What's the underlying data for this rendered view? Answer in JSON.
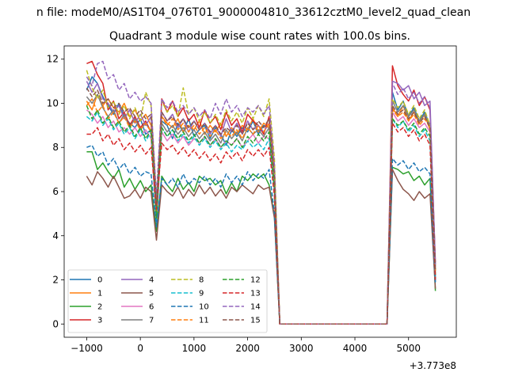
{
  "figure": {
    "suptitle": "n file: modeM0/AS1T04_076T01_9000004810_33612cztM0_level2_quad_clean",
    "title": "Quadrant 3 module wise count rates with 100.0s bins."
  },
  "chart_data": {
    "type": "line",
    "title": "Quadrant 3 module wise count rates with 100.0s bins.",
    "xlabel": "",
    "ylabel": "",
    "x_offset_label": "+3.773e8",
    "xlim": [
      -1420,
      5890
    ],
    "ylim": [
      -0.6,
      12.6
    ],
    "x_ticks": [
      -1000,
      0,
      1000,
      2000,
      3000,
      4000,
      5000
    ],
    "x_tick_labels": [
      "−1000",
      "0",
      "1000",
      "2000",
      "3000",
      "4000",
      "5000"
    ],
    "y_ticks": [
      0,
      2,
      4,
      6,
      8,
      10,
      12
    ],
    "y_tick_labels": [
      "0",
      "2",
      "4",
      "6",
      "8",
      "10",
      "12"
    ],
    "grid": false,
    "legend_position": "lower-left",
    "legend_columns": 4,
    "x": [
      -1000,
      -900,
      -800,
      -700,
      -600,
      -500,
      -400,
      -300,
      -200,
      -100,
      0,
      100,
      200,
      300,
      400,
      500,
      600,
      700,
      800,
      900,
      1000,
      1100,
      1200,
      1300,
      1400,
      1500,
      1600,
      1700,
      1800,
      1900,
      2000,
      2100,
      2200,
      2300,
      2400,
      2500,
      2600,
      4600,
      4700,
      4800,
      4900,
      5000,
      5100,
      5200,
      5300,
      5400,
      5500
    ],
    "series": [
      {
        "name": "0",
        "color": "#1f77b4",
        "dash": "solid",
        "values": [
          10.6,
          11.2,
          10.9,
          10.3,
          9.9,
          9.5,
          10.0,
          9.4,
          9.1,
          8.9,
          9.3,
          8.6,
          8.8,
          4.5,
          9.2,
          9.0,
          8.4,
          9.1,
          8.7,
          9.3,
          8.5,
          8.8,
          9.0,
          8.4,
          8.9,
          8.6,
          8.1,
          8.8,
          8.5,
          8.9,
          8.7,
          9.2,
          8.6,
          9.0,
          8.9,
          6.2,
          0.0,
          0.0,
          10.5,
          9.7,
          10.1,
          9.4,
          9.8,
          9.2,
          9.6,
          9.0,
          1.9
        ]
      },
      {
        "name": "1",
        "color": "#ff7f0e",
        "dash": "solid",
        "values": [
          10.1,
          9.7,
          10.4,
          9.9,
          10.2,
          9.8,
          9.6,
          10.0,
          9.4,
          9.7,
          9.2,
          9.5,
          9.0,
          4.8,
          9.4,
          9.1,
          8.9,
          9.3,
          8.7,
          9.0,
          8.8,
          9.2,
          8.6,
          9.0,
          8.7,
          9.1,
          8.5,
          8.9,
          8.6,
          9.0,
          8.8,
          9.3,
          8.7,
          9.1,
          8.9,
          6.4,
          0.0,
          0.0,
          9.8,
          9.4,
          9.9,
          9.2,
          9.6,
          9.1,
          9.5,
          8.8,
          2.4
        ]
      },
      {
        "name": "2",
        "color": "#2ca02c",
        "dash": "solid",
        "values": [
          7.8,
          7.8,
          7.0,
          7.3,
          6.9,
          6.6,
          7.0,
          6.2,
          6.6,
          6.1,
          6.5,
          6.0,
          6.3,
          4.2,
          6.7,
          6.3,
          6.0,
          6.6,
          6.1,
          6.4,
          6.0,
          6.7,
          6.5,
          6.6,
          6.3,
          6.5,
          5.9,
          6.4,
          6.0,
          6.7,
          6.5,
          6.8,
          6.6,
          6.8,
          6.3,
          4.9,
          0.0,
          0.0,
          7.1,
          7.0,
          6.8,
          6.9,
          6.5,
          6.7,
          6.3,
          6.6,
          1.5
        ]
      },
      {
        "name": "3",
        "color": "#d62728",
        "dash": "solid",
        "values": [
          11.8,
          11.9,
          11.3,
          10.9,
          9.7,
          10.1,
          9.3,
          9.6,
          9.0,
          9.4,
          8.9,
          9.2,
          8.7,
          4.9,
          10.2,
          9.6,
          10.1,
          9.4,
          9.8,
          9.2,
          9.5,
          8.9,
          9.7,
          9.1,
          9.4,
          8.8,
          9.6,
          9.0,
          9.3,
          8.7,
          9.5,
          9.2,
          9.0,
          8.6,
          9.4,
          6.9,
          0.0,
          0.0,
          11.7,
          10.8,
          10.4,
          10.1,
          10.6,
          9.9,
          10.3,
          9.7,
          2.8
        ]
      },
      {
        "name": "4",
        "color": "#9467bd",
        "dash": "solid",
        "values": [
          11.0,
          10.5,
          10.9,
          10.2,
          10.0,
          9.6,
          9.9,
          9.3,
          9.7,
          9.1,
          9.5,
          9.0,
          9.4,
          5.1,
          9.6,
          9.2,
          9.5,
          8.9,
          9.3,
          8.7,
          9.2,
          8.8,
          9.1,
          8.6,
          9.0,
          8.5,
          9.3,
          8.7,
          9.1,
          8.6,
          9.2,
          8.8,
          9.0,
          8.7,
          9.1,
          6.6,
          0.0,
          0.0,
          11.0,
          10.9,
          10.6,
          10.8,
          10.2,
          10.5,
          9.9,
          10.1,
          2.6
        ]
      },
      {
        "name": "5",
        "color": "#8c564b",
        "dash": "solid",
        "values": [
          6.7,
          6.3,
          6.9,
          6.6,
          6.2,
          6.7,
          6.2,
          5.7,
          5.8,
          6.1,
          5.7,
          6.2,
          6.0,
          3.8,
          6.3,
          6.0,
          5.8,
          6.2,
          5.7,
          6.1,
          5.8,
          6.3,
          5.9,
          6.2,
          5.8,
          6.1,
          5.7,
          6.2,
          6.0,
          6.3,
          6.1,
          5.9,
          6.3,
          6.1,
          6.2,
          4.8,
          0.0,
          0.0,
          7.0,
          6.5,
          6.1,
          5.9,
          5.6,
          6.0,
          5.7,
          5.9,
          1.6
        ]
      },
      {
        "name": "6",
        "color": "#e377c2",
        "dash": "solid",
        "values": [
          9.7,
          9.5,
          9.1,
          9.4,
          8.9,
          9.2,
          8.7,
          8.9,
          8.6,
          8.9,
          8.5,
          8.8,
          8.4,
          4.6,
          8.7,
          8.3,
          8.6,
          8.2,
          8.5,
          8.1,
          8.4,
          8.2,
          8.5,
          8.1,
          8.4,
          8.0,
          8.3,
          8.1,
          8.4,
          8.0,
          8.3,
          8.6,
          8.2,
          8.5,
          8.4,
          6.1,
          0.0,
          0.0,
          9.6,
          9.2,
          9.4,
          9.0,
          9.3,
          8.9,
          9.1,
          8.7,
          2.1
        ]
      },
      {
        "name": "7",
        "color": "#7f7f7f",
        "dash": "solid",
        "values": [
          10.3,
          10.0,
          10.4,
          9.8,
          9.4,
          9.7,
          9.1,
          9.5,
          8.9,
          9.3,
          8.8,
          9.1,
          8.7,
          4.9,
          9.1,
          8.7,
          9.0,
          8.6,
          8.9,
          8.5,
          8.8,
          8.4,
          8.7,
          8.3,
          8.6,
          8.2,
          8.8,
          8.4,
          8.7,
          8.3,
          8.9,
          8.6,
          8.8,
          8.5,
          8.9,
          6.3,
          0.0,
          0.0,
          10.1,
          9.6,
          9.9,
          9.4,
          9.7,
          9.2,
          9.5,
          9.0,
          2.2
        ]
      },
      {
        "name": "8",
        "color": "#bcbd22",
        "dash": "dashed",
        "values": [
          11.5,
          10.7,
          10.2,
          10.6,
          9.8,
          10.1,
          9.5,
          9.9,
          9.3,
          9.8,
          9.2,
          10.5,
          9.9,
          5.6,
          10.1,
          9.6,
          9.9,
          9.4,
          10.7,
          9.5,
          9.8,
          9.2,
          9.6,
          9.1,
          9.5,
          9.0,
          9.7,
          9.2,
          9.6,
          9.1,
          9.8,
          9.3,
          9.9,
          9.4,
          10.2,
          7.5,
          0.0,
          0.0,
          10.2,
          9.8,
          10.1,
          9.5,
          9.9,
          9.3,
          9.7,
          9.0,
          2.5
        ]
      },
      {
        "name": "9",
        "color": "#17becf",
        "dash": "dashed",
        "values": [
          9.4,
          9.2,
          9.6,
          9.0,
          9.3,
          8.8,
          9.1,
          8.6,
          8.9,
          8.4,
          8.8,
          8.3,
          8.7,
          4.7,
          8.9,
          8.5,
          8.8,
          8.3,
          8.6,
          8.2,
          8.5,
          8.1,
          8.4,
          8.0,
          8.3,
          7.9,
          8.2,
          7.8,
          8.1,
          7.9,
          8.3,
          8.0,
          8.2,
          7.9,
          8.4,
          6.0,
          0.0,
          0.0,
          9.3,
          8.9,
          9.2,
          8.7,
          9.0,
          8.5,
          8.8,
          8.3,
          2.0
        ]
      },
      {
        "name": "10",
        "color": "#1f77b4",
        "dash": "dashed",
        "values": [
          8.0,
          8.1,
          7.6,
          7.8,
          7.2,
          7.5,
          7.0,
          7.3,
          6.8,
          7.1,
          6.7,
          6.9,
          6.8,
          4.4,
          6.6,
          6.3,
          6.6,
          6.2,
          6.8,
          6.3,
          6.6,
          6.4,
          6.7,
          6.3,
          6.6,
          6.2,
          6.8,
          6.4,
          6.7,
          6.3,
          6.9,
          6.5,
          6.8,
          6.6,
          7.0,
          5.0,
          0.0,
          0.0,
          7.5,
          7.2,
          7.4,
          7.0,
          7.3,
          6.9,
          7.1,
          6.8,
          1.8
        ]
      },
      {
        "name": "11",
        "color": "#ff7f0e",
        "dash": "dashed",
        "values": [
          9.9,
          10.2,
          9.6,
          9.9,
          9.3,
          9.6,
          9.1,
          9.4,
          8.9,
          9.2,
          8.8,
          9.1,
          8.7,
          4.9,
          9.4,
          9.0,
          9.3,
          8.8,
          9.1,
          8.7,
          9.0,
          8.6,
          8.9,
          8.5,
          8.8,
          8.4,
          8.7,
          8.5,
          8.8,
          8.4,
          8.9,
          8.6,
          9.0,
          8.7,
          9.1,
          6.5,
          0.0,
          0.0,
          9.7,
          9.4,
          9.6,
          9.2,
          9.5,
          9.0,
          9.3,
          8.9,
          2.3
        ]
      },
      {
        "name": "12",
        "color": "#2ca02c",
        "dash": "dashed",
        "values": [
          9.9,
          9.3,
          9.7,
          9.1,
          9.4,
          8.9,
          9.2,
          8.7,
          9.0,
          8.5,
          8.9,
          8.4,
          8.8,
          4.8,
          8.9,
          8.5,
          8.8,
          8.4,
          8.7,
          8.3,
          8.6,
          8.2,
          8.5,
          8.1,
          8.4,
          8.0,
          8.3,
          8.1,
          8.4,
          8.0,
          8.5,
          8.2,
          8.6,
          8.3,
          8.7,
          6.2,
          0.0,
          0.0,
          9.3,
          9.0,
          9.2,
          8.8,
          9.1,
          8.6,
          8.9,
          8.5,
          2.1
        ]
      },
      {
        "name": "13",
        "color": "#d62728",
        "dash": "dashed",
        "values": [
          8.6,
          8.6,
          8.9,
          8.3,
          8.6,
          8.1,
          8.4,
          7.9,
          8.2,
          7.8,
          8.1,
          7.7,
          8.0,
          5.2,
          8.2,
          7.9,
          8.1,
          7.7,
          8.0,
          7.6,
          7.9,
          7.5,
          7.8,
          7.4,
          7.7,
          7.3,
          7.8,
          7.5,
          7.8,
          7.4,
          7.9,
          7.6,
          7.9,
          7.6,
          8.0,
          5.8,
          0.0,
          0.0,
          9.1,
          8.7,
          8.9,
          8.5,
          8.8,
          8.3,
          8.6,
          8.1,
          2.0
        ]
      },
      {
        "name": "14",
        "color": "#9467bd",
        "dash": "dashed",
        "values": [
          11.2,
          10.8,
          11.8,
          11.9,
          11.1,
          11.3,
          10.6,
          10.9,
          10.2,
          10.5,
          10.1,
          10.3,
          10.0,
          5.8,
          10.2,
          9.8,
          10.1,
          9.6,
          9.9,
          9.5,
          9.8,
          9.4,
          9.7,
          9.3,
          10.0,
          9.5,
          10.2,
          9.6,
          9.9,
          9.4,
          9.8,
          9.6,
          9.9,
          9.5,
          9.9,
          7.2,
          0.0,
          0.0,
          10.9,
          10.4,
          10.7,
          10.2,
          10.5,
          10.0,
          10.3,
          9.8,
          2.7
        ]
      },
      {
        "name": "15",
        "color": "#8c564b",
        "dash": "dashed",
        "values": [
          10.7,
          10.3,
          10.6,
          10.0,
          10.2,
          9.8,
          10.0,
          9.6,
          9.8,
          9.4,
          9.7,
          9.3,
          9.5,
          5.4,
          9.6,
          9.2,
          9.4,
          9.0,
          9.3,
          8.9,
          9.2,
          8.8,
          9.1,
          8.7,
          9.0,
          8.6,
          8.9,
          8.7,
          9.0,
          8.6,
          9.1,
          8.8,
          9.2,
          8.9,
          9.3,
          6.7,
          0.0,
          0.0,
          9.9,
          9.5,
          9.7,
          9.3,
          9.6,
          9.1,
          9.4,
          8.9,
          2.4
        ]
      }
    ]
  }
}
